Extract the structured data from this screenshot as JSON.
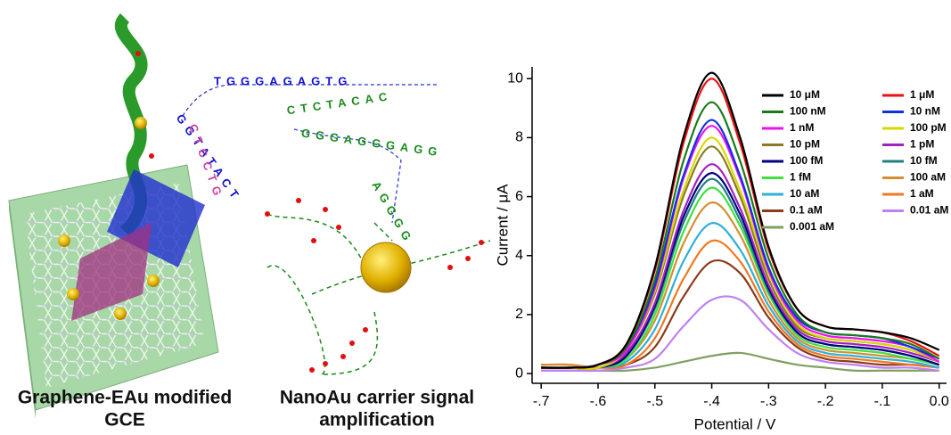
{
  "illustration": {
    "captions": [
      [
        "Graphene-EAu modified",
        "GCE"
      ],
      [
        "NanoAu carrier signal",
        "amplification"
      ]
    ],
    "strands": [
      {
        "text": "TGGGAGAGTG",
        "color": "#1010d0"
      },
      {
        "text": "CTCTACAC",
        "color": "#1a8a1a"
      },
      {
        "text": "GGGAGGGAGG",
        "color": "#1a8a1a"
      },
      {
        "text": "AGGGG",
        "color": "#1a8a1a"
      },
      {
        "text": "GGTATACT",
        "color": "#1010d0"
      },
      {
        "text": "CTCCTG",
        "color": "#d040a0"
      }
    ]
  },
  "chart_data": {
    "type": "line",
    "xlabel": "Potential / V",
    "ylabel": "Current / μA",
    "x": [
      -0.7,
      -0.65,
      -0.6,
      -0.55,
      -0.5,
      -0.45,
      -0.4,
      -0.35,
      -0.3,
      -0.25,
      -0.2,
      -0.15,
      -0.1,
      -0.05,
      0
    ],
    "xlim": [
      -0.716,
      0.013
    ],
    "ylim": [
      -0.33,
      10.4
    ],
    "xticks": [
      {
        "value": -0.7,
        "label": "-.7"
      },
      {
        "value": -0.6,
        "label": "-.6"
      },
      {
        "value": -0.5,
        "label": "-.5"
      },
      {
        "value": -0.4,
        "label": "-.4"
      },
      {
        "value": -0.3,
        "label": "-.3"
      },
      {
        "value": -0.2,
        "label": "-.2"
      },
      {
        "value": -0.1,
        "label": "-.1"
      },
      {
        "value": 0,
        "label": "0.0"
      }
    ],
    "yticks": [
      0,
      2,
      4,
      6,
      8,
      10
    ],
    "series": [
      {
        "name": "10 μM",
        "color": "#000000",
        "values": [
          0.2,
          0.2,
          0.3,
          1.0,
          3.6,
          8.0,
          10.2,
          8.0,
          4.3,
          2.2,
          1.6,
          1.5,
          1.4,
          1.2,
          0.8
        ]
      },
      {
        "name": "1 μM",
        "color": "#ee1111",
        "values": [
          0.2,
          0.2,
          0.3,
          1.0,
          3.5,
          7.8,
          10.0,
          7.8,
          4.2,
          2.2,
          1.6,
          1.5,
          1.4,
          1.1,
          0.6
        ]
      },
      {
        "name": "100 nM",
        "color": "#1a7a1a",
        "values": [
          0.2,
          0.2,
          0.3,
          0.9,
          3.2,
          7.2,
          9.2,
          7.2,
          3.9,
          2.0,
          1.4,
          1.3,
          1.2,
          1.0,
          0.5
        ]
      },
      {
        "name": "10 nM",
        "color": "#1030e0",
        "values": [
          0.2,
          0.2,
          0.3,
          0.9,
          3.0,
          6.7,
          8.6,
          6.7,
          3.6,
          1.9,
          1.4,
          1.3,
          1.2,
          0.9,
          0.5
        ]
      },
      {
        "name": "1 nM",
        "color": "#ee10ee",
        "values": [
          0.2,
          0.2,
          0.3,
          0.8,
          2.9,
          6.6,
          8.4,
          6.6,
          3.5,
          1.8,
          1.3,
          1.2,
          1.1,
          0.9,
          0.4
        ]
      },
      {
        "name": "100 pM",
        "color": "#d8d800",
        "values": [
          0.2,
          0.2,
          0.2,
          0.8,
          2.8,
          6.2,
          8.0,
          6.2,
          3.4,
          1.7,
          1.2,
          1.1,
          1.0,
          0.8,
          0.4
        ]
      },
      {
        "name": "10 pM",
        "color": "#8a7a20",
        "values": [
          0.2,
          0.2,
          0.2,
          0.8,
          2.7,
          6.0,
          7.7,
          6.0,
          3.2,
          1.6,
          1.2,
          1.1,
          1.0,
          0.8,
          0.4
        ]
      },
      {
        "name": "1 pM",
        "color": "#a020c0",
        "values": [
          0.2,
          0.2,
          0.2,
          0.7,
          2.4,
          5.5,
          7.1,
          5.6,
          3.0,
          1.5,
          1.1,
          1.0,
          0.9,
          0.7,
          0.4
        ]
      },
      {
        "name": "100 fM",
        "color": "#000080",
        "values": [
          0.2,
          0.2,
          0.2,
          0.6,
          2.3,
          5.3,
          6.8,
          5.4,
          2.9,
          1.4,
          1.0,
          0.9,
          0.8,
          0.6,
          0.3
        ]
      },
      {
        "name": "10 fM",
        "color": "#208080",
        "values": [
          0.2,
          0.2,
          0.2,
          0.6,
          2.2,
          5.1,
          6.6,
          5.2,
          2.8,
          1.4,
          1.0,
          0.9,
          0.8,
          0.6,
          0.3
        ]
      },
      {
        "name": "1 fM",
        "color": "#40e040",
        "values": [
          0.2,
          0.2,
          0.2,
          0.5,
          2.0,
          4.8,
          6.3,
          5.0,
          2.7,
          1.3,
          0.9,
          0.8,
          0.7,
          0.5,
          0.3
        ]
      },
      {
        "name": "100 aM",
        "color": "#d09030",
        "values": [
          0.3,
          0.3,
          0.2,
          0.5,
          1.8,
          4.4,
          5.8,
          4.7,
          2.5,
          1.2,
          0.8,
          0.7,
          0.6,
          0.5,
          0.3
        ]
      },
      {
        "name": "10 aM",
        "color": "#30b0d8",
        "values": [
          0.2,
          0.2,
          0.2,
          0.4,
          1.5,
          3.8,
          5.1,
          4.2,
          2.3,
          1.1,
          0.7,
          0.6,
          0.5,
          0.4,
          0.2
        ]
      },
      {
        "name": "1 aM",
        "color": "#f07820",
        "values": [
          0.3,
          0.3,
          0.2,
          0.3,
          1.2,
          3.2,
          4.5,
          3.8,
          2.1,
          1.0,
          0.6,
          0.5,
          0.4,
          0.3,
          0.2
        ]
      },
      {
        "name": "0.1 aM",
        "color": "#8b3a1a",
        "values": [
          0.2,
          0.2,
          0.2,
          0.3,
          0.9,
          2.6,
          3.8,
          3.4,
          1.9,
          0.9,
          0.5,
          0.4,
          0.3,
          0.3,
          0.2
        ]
      },
      {
        "name": "0.01 aM",
        "color": "#c080f0",
        "values": [
          0.1,
          0.1,
          0.1,
          0.2,
          0.5,
          1.6,
          2.5,
          2.5,
          1.5,
          0.7,
          0.4,
          0.3,
          0.2,
          0.2,
          0.1
        ]
      },
      {
        "name": "0.001 aM",
        "color": "#80a060",
        "values": [
          0.1,
          0.1,
          0.1,
          0.1,
          0.2,
          0.4,
          0.6,
          0.7,
          0.5,
          0.3,
          0.2,
          0.1,
          0.1,
          0.1,
          0.1
        ]
      }
    ]
  }
}
